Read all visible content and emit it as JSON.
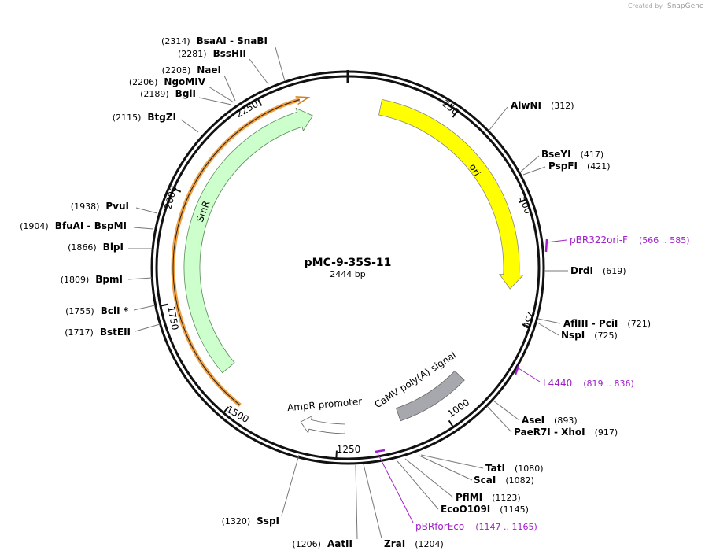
{
  "watermark": {
    "created_by": "Created by",
    "brand": "SnapGene"
  },
  "map": {
    "name": "pMC-9-35S-11",
    "length": "2444 bp"
  },
  "ticks": [
    250,
    500,
    750,
    1000,
    1250,
    1500,
    1750,
    2000,
    2250
  ],
  "features": [
    {
      "label": "ori"
    },
    {
      "label": "SmR"
    },
    {
      "label": "AmpR promoter"
    },
    {
      "label": "CaMV poly(A) signal"
    }
  ],
  "primers": [
    {
      "name": "pBR322ori-F",
      "range": "(566 .. 585)"
    },
    {
      "name": "L4440",
      "range": "(819 .. 836)"
    },
    {
      "name": "pBRforEco",
      "range": "(1147 .. 1165)"
    }
  ],
  "enzymes": [
    {
      "name": "BsaAI  - SnaBI",
      "position": "(2314)"
    },
    {
      "name": "BssHII",
      "position": "(2281)"
    },
    {
      "name": "NaeI",
      "position": "(2208)"
    },
    {
      "name": "NgoMIV",
      "position": "(2206)"
    },
    {
      "name": "BglI",
      "position": "(2189)"
    },
    {
      "name": "BtgZI",
      "position": "(2115)"
    },
    {
      "name": "PvuI",
      "position": "(1938)"
    },
    {
      "name": "BfuAI  - BspMI",
      "position": "(1904)"
    },
    {
      "name": "BlpI",
      "position": "(1866)"
    },
    {
      "name": "BpmI",
      "position": "(1809)"
    },
    {
      "name": "BclI *",
      "position": "(1755)"
    },
    {
      "name": "BstEII",
      "position": "(1717)"
    },
    {
      "name": "SspI",
      "position": "(1320)"
    },
    {
      "name": "AatII",
      "position": "(1206)"
    },
    {
      "name": "AlwNI",
      "position": "(312)"
    },
    {
      "name": "BseYI",
      "position": "(417)"
    },
    {
      "name": "PspFI",
      "position": "(421)"
    },
    {
      "name": "DrdI",
      "position": "(619)"
    },
    {
      "name": "AflIII  - PciI",
      "position": "(721)"
    },
    {
      "name": "NspI",
      "position": "(725)"
    },
    {
      "name": "AseI",
      "position": "(893)"
    },
    {
      "name": "PaeR7I  - XhoI",
      "position": "(917)"
    },
    {
      "name": "TatI",
      "position": "(1080)"
    },
    {
      "name": "ScaI",
      "position": "(1082)"
    },
    {
      "name": "PflMI",
      "position": "(1123)"
    },
    {
      "name": "EcoO109I",
      "position": "(1145)"
    },
    {
      "name": "ZraI",
      "position": "(1204)"
    }
  ]
}
